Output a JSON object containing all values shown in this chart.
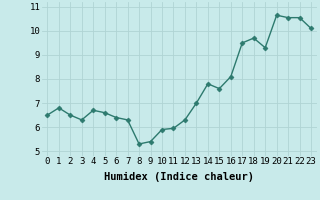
{
  "x": [
    0,
    1,
    2,
    3,
    4,
    5,
    6,
    7,
    8,
    9,
    10,
    11,
    12,
    13,
    14,
    15,
    16,
    17,
    18,
    19,
    20,
    21,
    22,
    23
  ],
  "y": [
    6.5,
    6.8,
    6.5,
    6.3,
    6.7,
    6.6,
    6.4,
    6.3,
    5.3,
    5.4,
    5.9,
    5.95,
    6.3,
    7.0,
    7.8,
    7.6,
    8.1,
    9.5,
    9.7,
    9.3,
    10.65,
    10.55,
    10.55,
    10.1
  ],
  "line_color": "#2d7a6e",
  "marker": "D",
  "marker_size": 2.5,
  "background_color": "#c8eaea",
  "grid_color": "#b0d4d4",
  "xlabel": "Humidex (Indice chaleur)",
  "xlabel_fontsize": 7.5,
  "xlim": [
    -0.5,
    23.5
  ],
  "ylim": [
    4.8,
    11.2
  ],
  "yticks": [
    5,
    6,
    7,
    8,
    9,
    10,
    11
  ],
  "xticks": [
    0,
    1,
    2,
    3,
    4,
    5,
    6,
    7,
    8,
    9,
    10,
    11,
    12,
    13,
    14,
    15,
    16,
    17,
    18,
    19,
    20,
    21,
    22,
    23
  ],
  "tick_fontsize": 6.5,
  "line_width": 1.0
}
